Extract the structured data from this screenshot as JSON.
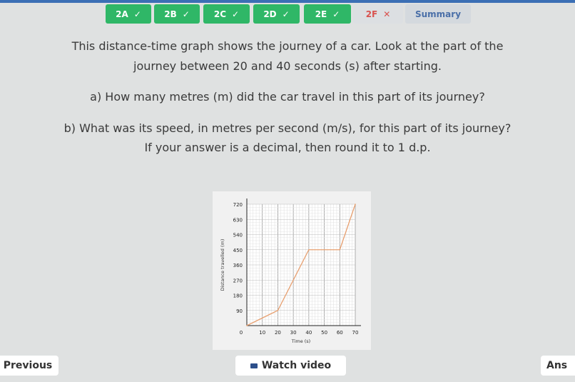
{
  "tabs": [
    {
      "label": "2A",
      "status": "correct"
    },
    {
      "label": "2B",
      "status": "correct"
    },
    {
      "label": "2C",
      "status": "correct"
    },
    {
      "label": "2D",
      "status": "correct"
    },
    {
      "label": "2E",
      "status": "correct"
    },
    {
      "label": "2F",
      "status": "wrong"
    },
    {
      "label": "Summary"
    }
  ],
  "icons": {
    "correct": "✓",
    "wrong": "✕",
    "video": "video-icon"
  },
  "question": {
    "line1": "This distance-time graph shows the journey of a car. Look at the part of the",
    "line2": "journey between 20 and 40 seconds (s) after starting.",
    "part_a": "a) How many metres (m) did the car travel in this part of its journey?",
    "part_b": "b) What was its speed, in metres per second (m/s), for this part of its journey?",
    "hint": "If your answer is a decimal, then round it to 1 d.p."
  },
  "chart_data": {
    "type": "line",
    "xlabel": "Time (s)",
    "ylabel": "Distance travelled (m)",
    "xlim": [
      0,
      70
    ],
    "ylim": [
      0,
      720
    ],
    "xticks": [
      0,
      10,
      20,
      30,
      40,
      50,
      60,
      70
    ],
    "yticks": [
      0,
      90,
      180,
      270,
      360,
      450,
      540,
      630,
      720
    ],
    "grid": true,
    "x": [
      0,
      20,
      40,
      60,
      70
    ],
    "y": [
      0,
      90,
      450,
      450,
      720
    ],
    "color": "#e8a070"
  },
  "footer": {
    "previous": "Previous",
    "watch_video": "Watch video",
    "answer": "Ans"
  }
}
